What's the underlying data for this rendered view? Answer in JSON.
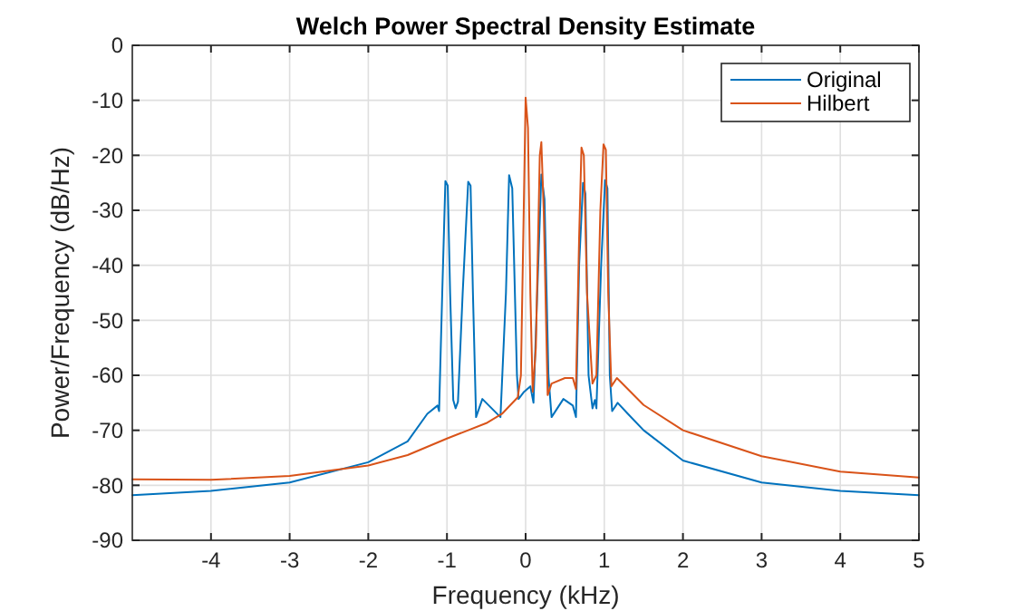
{
  "chart_data": {
    "type": "line",
    "title": "Welch Power Spectral Density Estimate",
    "xlabel": "Frequency (kHz)",
    "ylabel": "Power/Frequency (dB/Hz)",
    "xlim": [
      -5,
      5
    ],
    "xticks": [
      -4,
      -3,
      -2,
      -1,
      0,
      1,
      2,
      3,
      4,
      5
    ],
    "ylim": [
      -90,
      0
    ],
    "yticks": [
      -90,
      -80,
      -70,
      -60,
      -50,
      -40,
      -30,
      -20,
      -10,
      0
    ],
    "grid": true,
    "legend": "top right",
    "marker": "none",
    "line_style": "solid",
    "series": [
      {
        "name": "Original",
        "color": "#0072bd",
        "x": [
          -5,
          -4,
          -3,
          -2,
          -1.5,
          -1.25,
          -1.12,
          -1.1,
          -1.06,
          -1.02,
          -0.99,
          -0.96,
          -0.92,
          -0.89,
          -0.86,
          -0.8,
          -0.73,
          -0.7,
          -0.67,
          -0.63,
          -0.55,
          -0.32,
          -0.25,
          -0.21,
          -0.17,
          -0.11,
          -0.09,
          -0.02,
          0.06,
          0.1,
          0.16,
          0.2,
          0.24,
          0.29,
          0.33,
          0.48,
          0.6,
          0.64,
          0.68,
          0.73,
          0.76,
          0.8,
          0.85,
          0.88,
          0.9,
          0.96,
          1.01,
          1.04,
          1.07,
          1.1,
          1.17,
          1.3,
          1.5,
          2,
          3,
          4,
          5
        ],
        "values": [
          -81.8,
          -81,
          -79.5,
          -75.8,
          -72,
          -67,
          -65.5,
          -66.5,
          -45,
          -24.7,
          -25.5,
          -45,
          -64.5,
          -66,
          -64.8,
          -45,
          -24.8,
          -25.5,
          -45,
          -67.6,
          -64.3,
          -67.6,
          -45,
          -23.6,
          -26,
          -60,
          -64.3,
          -63,
          -62,
          -65,
          -40,
          -23.5,
          -28,
          -60,
          -67.6,
          -64.3,
          -65.5,
          -67.6,
          -40,
          -25,
          -27,
          -60,
          -66,
          -64.5,
          -66,
          -40,
          -24.5,
          -26,
          -60,
          -66.5,
          -65,
          -67,
          -70,
          -75.5,
          -79.5,
          -81,
          -81.8
        ]
      },
      {
        "name": "Hilbert",
        "color": "#d95319",
        "x": [
          -5,
          -4,
          -3,
          -2,
          -1.5,
          -1,
          -0.5,
          -0.3,
          -0.1,
          -0.06,
          -0.03,
          0,
          0.03,
          0.06,
          0.09,
          0.13,
          0.18,
          0.2,
          0.23,
          0.28,
          0.33,
          0.5,
          0.6,
          0.64,
          0.68,
          0.71,
          0.74,
          0.78,
          0.85,
          0.9,
          0.95,
          0.99,
          1.02,
          1.05,
          1.09,
          1.16,
          1.5,
          2,
          3,
          4,
          5
        ],
        "values": [
          -78.9,
          -79,
          -78.3,
          -76.4,
          -74.5,
          -71.5,
          -68.7,
          -67,
          -64,
          -60,
          -35,
          -9.5,
          -15,
          -45,
          -63,
          -55,
          -20,
          -17.6,
          -30,
          -63.6,
          -61.5,
          -60.5,
          -60.5,
          -62.5,
          -35,
          -18.6,
          -20,
          -45,
          -61.5,
          -60,
          -30,
          -18,
          -19,
          -45,
          -62,
          -60.5,
          -65.4,
          -70,
          -74.7,
          -77.5,
          -78.6
        ]
      }
    ]
  }
}
